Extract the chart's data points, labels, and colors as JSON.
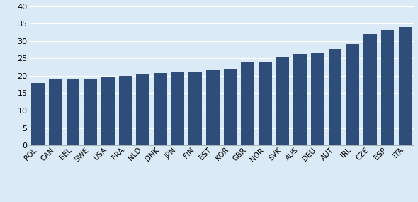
{
  "categories": [
    "POL",
    "CAN",
    "BEL",
    "SWE",
    "USA",
    "FRA",
    "NLD",
    "DNK",
    "JPN",
    "FIN",
    "EST",
    "KOR",
    "GBR",
    "NOR",
    "SVK",
    "AUS",
    "DEU",
    "AUT",
    "IRL",
    "CZE",
    "ESP",
    "ITA"
  ],
  "values": [
    18.0,
    19.0,
    19.2,
    19.2,
    19.5,
    20.0,
    20.5,
    20.8,
    21.1,
    21.1,
    21.7,
    22.1,
    24.0,
    24.1,
    25.2,
    26.2,
    26.5,
    27.8,
    29.2,
    32.0,
    33.1,
    34.0
  ],
  "bar_color": "#2E4D7B",
  "bg_color": "#DAEAF6",
  "plot_bg_color": "#DAEAF6",
  "gap_color": "#B8D0E8",
  "grid_color": "#FFFFFF",
  "ylim": [
    0,
    40
  ],
  "yticks": [
    0,
    5,
    10,
    15,
    20,
    25,
    30,
    35,
    40
  ],
  "tick_fontsize": 8,
  "label_fontsize": 7.5
}
